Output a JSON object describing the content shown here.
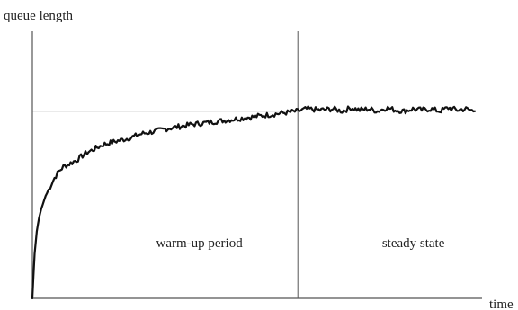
{
  "chart_data": {
    "type": "line",
    "title": "",
    "xlabel": "time",
    "ylabel": "queue length",
    "xlim": [
      0,
      100
    ],
    "ylim": [
      0,
      100
    ],
    "grid": false,
    "reference_lines": {
      "steady_level": 84,
      "phase_boundary": 60
    },
    "regions": [
      {
        "label": "warm-up period"
      },
      {
        "label": "steady state"
      }
    ],
    "series": [
      {
        "x": [
          0,
          0.5,
          1,
          1.5,
          2,
          3,
          4,
          5,
          6,
          7,
          8,
          10,
          12,
          14,
          16,
          18,
          20,
          22,
          25,
          28,
          30,
          33,
          36,
          40,
          44,
          48,
          52,
          56,
          58,
          60,
          62,
          65,
          68,
          70,
          72,
          74,
          76,
          78,
          80,
          82,
          84,
          86,
          88,
          90,
          92,
          94,
          96,
          98,
          100
        ],
        "y": [
          0,
          20,
          30,
          36,
          40,
          46,
          50,
          54,
          57,
          59,
          60,
          62,
          65,
          67,
          69,
          70,
          71,
          72,
          74,
          75,
          76,
          77,
          78,
          79,
          80,
          81,
          82,
          83,
          83.5,
          84,
          85,
          84.5,
          85,
          84,
          85.5,
          84.5,
          85,
          84,
          85.5,
          84.5,
          84,
          85,
          84.5,
          85,
          84,
          85.5,
          84.5,
          85,
          84
        ]
      }
    ]
  }
}
